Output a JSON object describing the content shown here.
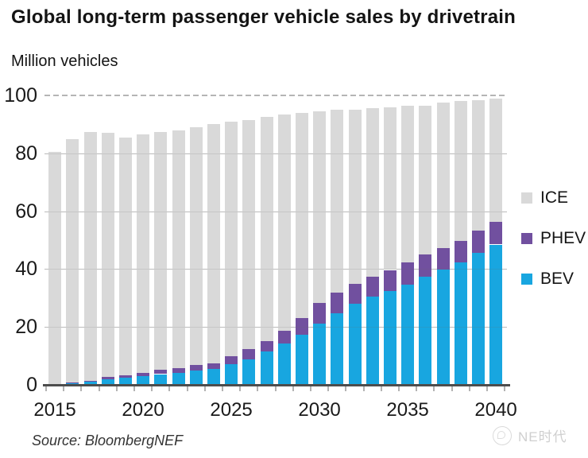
{
  "title": "Global long-term passenger vehicle sales by drivetrain",
  "y_axis_title": "Million vehicles",
  "source_note": "Source: BloombergNEF",
  "watermark_text": "NE时代",
  "legend": [
    {
      "label": "ICE",
      "color": "#d9d9d9"
    },
    {
      "label": "PHEV",
      "color": "#71509f"
    },
    {
      "label": "BEV",
      "color": "#18a6e0"
    }
  ],
  "chart_data": {
    "type": "bar",
    "stacked": true,
    "title": "Global long-term passenger vehicle sales by drivetrain",
    "ylabel": "Million vehicles",
    "xlabel": "",
    "ylim": [
      0,
      100
    ],
    "y_ticks": [
      0,
      20,
      40,
      60,
      80,
      100
    ],
    "grid": "horizontal solid at 20/40/60/80, dashed at 100",
    "legend_position": "right",
    "source": "Source: BloombergNEF",
    "categories": [
      2015,
      2016,
      2017,
      2018,
      2019,
      2020,
      2021,
      2022,
      2023,
      2024,
      2025,
      2026,
      2027,
      2028,
      2029,
      2030,
      2031,
      2032,
      2033,
      2034,
      2035,
      2036,
      2037,
      2038,
      2039,
      2040
    ],
    "x_tick_labels": [
      "2015",
      "2020",
      "2025",
      "2030",
      "2035",
      "2040"
    ],
    "series": [
      {
        "name": "BEV",
        "color": "#18a6e0",
        "values": [
          0.2,
          0.5,
          1.0,
          1.9,
          2.4,
          2.9,
          3.7,
          4.2,
          5.0,
          5.5,
          7.2,
          8.9,
          11.6,
          14.2,
          17.3,
          21.2,
          24.7,
          27.9,
          30.4,
          32.4,
          34.7,
          37.4,
          39.9,
          42.4,
          45.6,
          48.5
        ]
      },
      {
        "name": "PHEV",
        "color": "#71509f",
        "values": [
          0.2,
          0.4,
          0.4,
          0.8,
          1.0,
          1.2,
          1.4,
          1.6,
          1.9,
          2.0,
          2.8,
          3.4,
          3.6,
          4.4,
          5.8,
          7.0,
          7.2,
          6.9,
          6.9,
          7.3,
          7.7,
          7.6,
          7.4,
          7.4,
          7.6,
          7.7
        ]
      },
      {
        "name": "ICE",
        "color": "#d9d9d9",
        "values": [
          80.1,
          84.1,
          86.1,
          84.3,
          82.1,
          82.4,
          82.4,
          82.2,
          82.1,
          82.5,
          81.0,
          79.2,
          77.3,
          74.9,
          70.9,
          66.3,
          63.1,
          60.2,
          58.2,
          56.3,
          54.1,
          51.5,
          50.2,
          48.2,
          45.3,
          42.8
        ]
      }
    ]
  }
}
